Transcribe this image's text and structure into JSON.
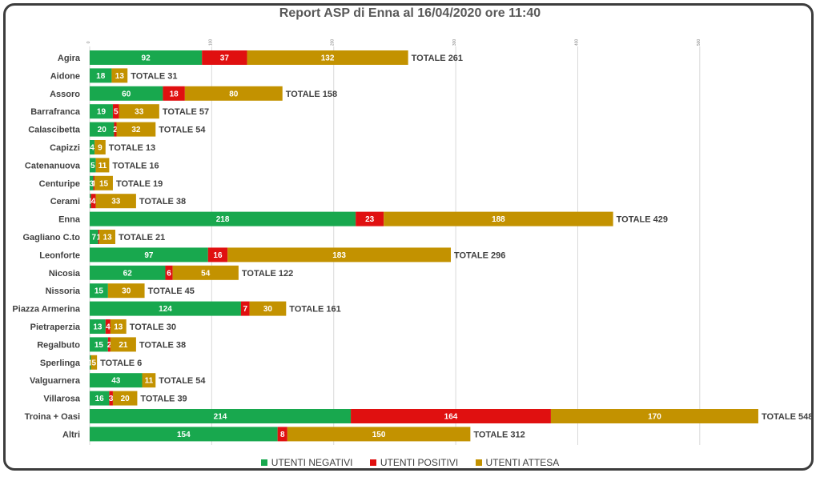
{
  "chart_data": {
    "type": "bar",
    "orientation": "horizontal",
    "stacked": true,
    "title": "Report ASP di Enna al 16/04/2020 ore 11:40",
    "xlim": [
      0,
      550
    ],
    "x_ticks": [
      0,
      100,
      200,
      300,
      400,
      500
    ],
    "grid": true,
    "legend_position": "bottom",
    "total_prefix": "TOTALE",
    "categories": [
      "Agira",
      "Aidone",
      "Assoro",
      "Barrafranca",
      "Calascibetta",
      "Capizzi",
      "Catenanuova",
      "Centuripe",
      "Cerami",
      "Enna",
      "Gagliano C.to",
      "Leonforte",
      "Nicosia",
      "Nissoria",
      "Piazza Armerina",
      "Pietraperzia",
      "Regalbuto",
      "Sperlinga",
      "Valguarnera",
      "Villarosa",
      "Troina + Oasi",
      "Altri"
    ],
    "series": [
      {
        "name": "UTENTI NEGATIVI",
        "color": "#18a84e",
        "values": [
          92,
          18,
          60,
          19,
          20,
          4,
          5,
          3,
          1,
          218,
          7,
          97,
          62,
          15,
          124,
          13,
          15,
          1,
          43,
          16,
          214,
          154
        ]
      },
      {
        "name": "UTENTI POSITIVI",
        "color": "#e01010",
        "values": [
          37,
          0,
          18,
          5,
          2,
          0,
          0,
          1,
          4,
          23,
          1,
          16,
          6,
          0,
          7,
          4,
          2,
          0,
          0,
          3,
          164,
          8
        ]
      },
      {
        "name": "UTENTI ATTESA",
        "color": "#c39200",
        "values": [
          132,
          13,
          80,
          33,
          32,
          9,
          11,
          15,
          33,
          188,
          13,
          183,
          54,
          30,
          30,
          13,
          21,
          5,
          11,
          20,
          170,
          150
        ]
      }
    ],
    "totals": [
      261,
      31,
      158,
      57,
      54,
      13,
      16,
      19,
      38,
      429,
      21,
      296,
      122,
      45,
      161,
      30,
      38,
      6,
      54,
      39,
      548,
      312
    ]
  }
}
